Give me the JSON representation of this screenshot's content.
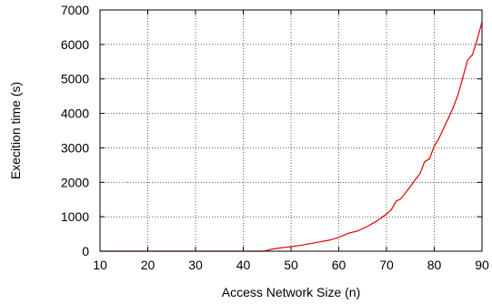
{
  "chart_data": {
    "type": "line",
    "title": "",
    "xlabel": "Access Network Size (n)",
    "ylabel": "Execition time (s)",
    "xlim": [
      10,
      90
    ],
    "ylim": [
      0,
      7000
    ],
    "xticks": [
      10,
      20,
      30,
      40,
      50,
      60,
      70,
      80,
      90
    ],
    "yticks": [
      0,
      1000,
      2000,
      3000,
      4000,
      5000,
      6000,
      7000
    ],
    "grid": true,
    "legend": "none",
    "series": [
      {
        "color": "#e00000",
        "x": [
          10,
          20,
          30,
          40,
          44,
          45,
          46,
          48,
          50,
          52,
          54,
          56,
          58,
          60,
          61,
          62,
          64,
          66,
          68,
          70,
          71,
          72,
          73,
          74,
          75,
          76,
          77,
          78,
          79,
          80,
          81,
          82,
          83,
          84,
          85,
          86,
          87,
          88,
          89,
          90
        ],
        "y": [
          0,
          0,
          0,
          0,
          0,
          20,
          60,
          100,
          130,
          170,
          220,
          270,
          320,
          400,
          460,
          520,
          590,
          720,
          880,
          1080,
          1200,
          1450,
          1520,
          1700,
          1880,
          2070,
          2250,
          2600,
          2680,
          3050,
          3280,
          3580,
          3870,
          4180,
          4550,
          5050,
          5550,
          5700,
          6150,
          6650
        ]
      }
    ]
  }
}
